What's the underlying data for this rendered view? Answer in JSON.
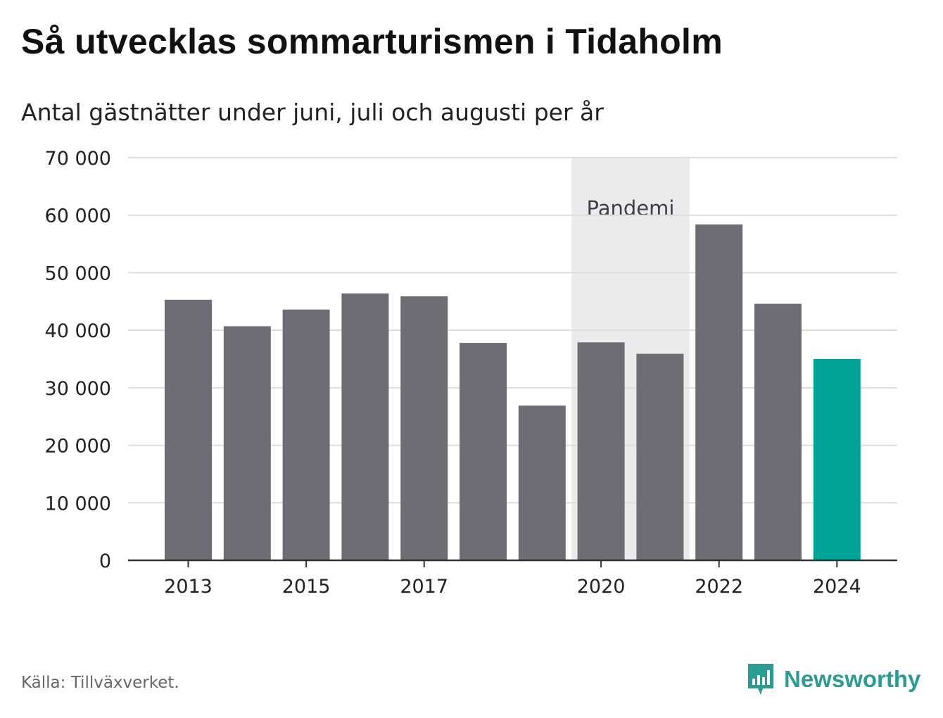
{
  "title": "Så utvecklas sommarturismen i Tidaholm",
  "subtitle": "Antal gästnätter under juni, juli och augusti per år",
  "source": "Källa: Tillväxverket.",
  "brand": "Newsworthy",
  "colors": {
    "bar": "#6e6d73",
    "highlight": "#00a497",
    "shade": "#ebebeb",
    "grid": "#dddddd",
    "axis": "#333333",
    "brand": "#2a9d93"
  },
  "chart_data": {
    "type": "bar",
    "categories": [
      "2013",
      "2014",
      "2015",
      "2016",
      "2017",
      "2018",
      "2019",
      "2020",
      "2021",
      "2022",
      "2023",
      "2024"
    ],
    "values": [
      45300,
      40700,
      43600,
      46400,
      45900,
      37800,
      26900,
      37900,
      35900,
      58400,
      44600,
      35000
    ],
    "highlight_category": "2024",
    "x_tick_labels": [
      "2013",
      "2015",
      "2017",
      "2020",
      "2022",
      "2024"
    ],
    "y_ticks": [
      0,
      10000,
      20000,
      30000,
      40000,
      50000,
      60000,
      70000
    ],
    "y_tick_labels": [
      "0",
      "10 000",
      "20 000",
      "30 000",
      "40 000",
      "50 000",
      "60 000",
      "70 000"
    ],
    "ylim": [
      0,
      70000
    ],
    "grid": true,
    "annotation": {
      "label": "Pandemi",
      "from": "2020",
      "to": "2021"
    }
  }
}
